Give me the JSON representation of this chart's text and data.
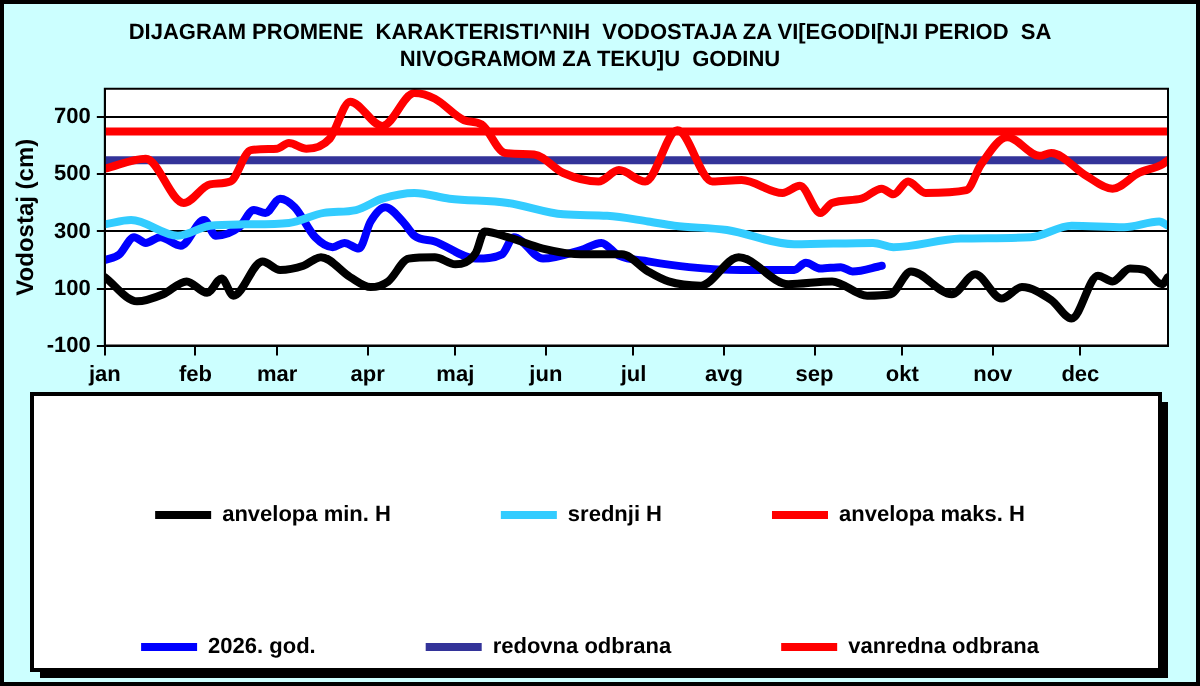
{
  "chart_data": {
    "type": "line",
    "title": [
      "DIJAGRAM PROMENE  KARAKTERISTI^NIH  VODOSTAJA ZA VI[EGODI[NJI PERIOD  SA",
      "NIVOGRAMOM ZA TEKU]U  GODINU"
    ],
    "ylabel": "Vodostaj (cm)",
    "xlim": [
      "--01-01",
      "--12-31"
    ],
    "xticks": [
      {
        "value": "--01-01",
        "label": "jan"
      },
      {
        "value": "--02-01",
        "label": "feb"
      },
      {
        "value": "--03-01",
        "label": "mar"
      },
      {
        "value": "--04-01",
        "label": "apr"
      },
      {
        "value": "--05-01",
        "label": "maj"
      },
      {
        "value": "--06-01",
        "label": "jun"
      },
      {
        "value": "--07-01",
        "label": "jul"
      },
      {
        "value": "--08-01",
        "label": "avg"
      },
      {
        "value": "--09-01",
        "label": "sep"
      },
      {
        "value": "--10-01",
        "label": "okt"
      },
      {
        "value": "--11-01",
        "label": "nov"
      },
      {
        "value": "--12-01",
        "label": "dec"
      }
    ],
    "ylim": [
      -100,
      800
    ],
    "yticks": [
      -100,
      100,
      300,
      500,
      700
    ],
    "grid": "y",
    "legend": "bottom",
    "series": [
      {
        "name": "anvelopa min. H",
        "color": "#000000",
        "x": [
          "--01-01",
          "--01-12",
          "--01-21",
          "--01-29",
          "--02-05",
          "--02-10",
          "--02-14",
          "--02-24",
          "--03-02",
          "--03-10",
          "--03-16",
          "--03-26",
          "--04-02",
          "--04-08",
          "--04-15",
          "--04-24",
          "--05-01",
          "--05-08",
          "--05-11",
          "--05-19",
          "--05-31",
          "--06-13",
          "--06-27",
          "--07-06",
          "--07-13",
          "--07-24",
          "--08-06",
          "--08-23",
          "--09-07",
          "--09-19",
          "--09-27",
          "--10-04",
          "--10-18",
          "--10-26",
          "--11-04",
          "--11-11",
          "--11-21",
          "--11-28",
          "--12-07",
          "--12-12",
          "--12-18",
          "--12-23",
          "--12-29",
          "--12-31"
        ],
        "values": [
          140,
          55,
          80,
          125,
          85,
          135,
          75,
          195,
          165,
          180,
          210,
          140,
          105,
          125,
          205,
          210,
          185,
          225,
          300,
          280,
          240,
          220,
          220,
          160,
          125,
          110,
          210,
          115,
          125,
          75,
          80,
          160,
          80,
          150,
          65,
          105,
          60,
          -5,
          145,
          125,
          170,
          165,
          115,
          140
        ]
      },
      {
        "name": "srednji H",
        "color": "#33ccff",
        "x": [
          "--01-01",
          "--01-10",
          "--01-26",
          "--02-06",
          "--02-18",
          "--03-05",
          "--03-17",
          "--03-28",
          "--04-06",
          "--04-17",
          "--04-29",
          "--05-19",
          "--06-07",
          "--06-22",
          "--07-06",
          "--07-15",
          "--08-02",
          "--08-25",
          "--09-21",
          "--09-28",
          "--10-21",
          "--11-14",
          "--11-28",
          "--12-16",
          "--12-28",
          "--12-31"
        ],
        "values": [
          325,
          340,
          285,
          320,
          325,
          330,
          365,
          375,
          415,
          435,
          415,
          400,
          360,
          355,
          335,
          320,
          305,
          255,
          260,
          245,
          275,
          280,
          320,
          315,
          335,
          320
        ]
      },
      {
        "name": "anvelopa maks. H",
        "color": "#ff0000",
        "x": [
          "--01-01",
          "--01-15",
          "--01-28",
          "--02-06",
          "--02-13",
          "--02-20",
          "--03-01",
          "--03-05",
          "--03-11",
          "--03-19",
          "--03-26",
          "--04-06",
          "--04-17",
          "--04-24",
          "--05-04",
          "--05-10",
          "--05-18",
          "--05-28",
          "--06-07",
          "--06-19",
          "--06-26",
          "--07-05",
          "--07-16",
          "--07-28",
          "--08-07",
          "--08-21",
          "--08-27",
          "--09-03",
          "--09-07",
          "--09-17",
          "--09-24",
          "--09-28",
          "--10-03",
          "--10-09",
          "--10-23",
          "--10-28",
          "--11-06",
          "--11-17",
          "--11-21",
          "--12-03",
          "--12-12",
          "--12-21",
          "--12-29",
          "--12-31"
        ],
        "values": [
          520,
          555,
          400,
          465,
          475,
          585,
          590,
          610,
          590,
          625,
          755,
          670,
          785,
          765,
          690,
          675,
          575,
          570,
          505,
          475,
          515,
          475,
          655,
          475,
          480,
          435,
          460,
          365,
          400,
          415,
          450,
          430,
          475,
          435,
          445,
          535,
          630,
          565,
          575,
          495,
          450,
          505,
          535,
          550
        ]
      },
      {
        "name": "2026. god.",
        "color": "#0000ff",
        "x": [
          "--01-01",
          "--01-06",
          "--01-11",
          "--01-15",
          "--01-20",
          "--01-27",
          "--02-04",
          "--02-08",
          "--02-16",
          "--02-21",
          "--02-25",
          "--03-02",
          "--03-07",
          "--03-14",
          "--03-20",
          "--03-24",
          "--03-29",
          "--04-02",
          "--04-07",
          "--04-13",
          "--04-17",
          "--04-24",
          "--05-08",
          "--05-17",
          "--05-21",
          "--05-31",
          "--06-13",
          "--06-20",
          "--06-26",
          "--07-06",
          "--07-20",
          "--08-07",
          "--08-25",
          "--08-29",
          "--09-03",
          "--09-10",
          "--09-14",
          "--09-24"
        ],
        "values": [
          200,
          220,
          280,
          260,
          280,
          250,
          340,
          285,
          315,
          375,
          365,
          415,
          385,
          280,
          245,
          260,
          240,
          335,
          385,
          335,
          285,
          265,
          205,
          220,
          280,
          205,
          235,
          260,
          215,
          195,
          175,
          165,
          165,
          190,
          170,
          175,
          160,
          180
        ]
      },
      {
        "name": "redovna odbrana",
        "color": "#333399",
        "x": [
          "--01-01",
          "--12-31"
        ],
        "values": [
          550,
          550
        ]
      },
      {
        "name": "vanredna odbrana",
        "color": "#ff0000",
        "x": [
          "--01-01",
          "--12-31"
        ],
        "values": [
          650,
          650
        ]
      }
    ]
  }
}
